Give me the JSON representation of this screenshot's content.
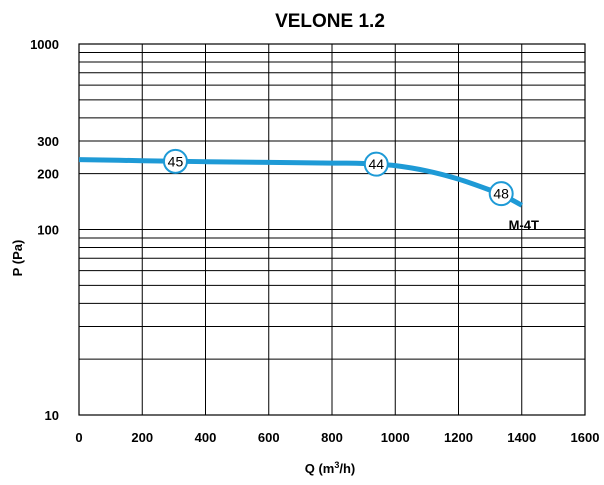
{
  "chart_data": {
    "type": "line",
    "title": "VELONE 1.2",
    "xlabel": {
      "main": "Q (m",
      "sup": "3",
      "tail": "/h)"
    },
    "ylabel": "P  (Pa)",
    "xlim": [
      0,
      1600
    ],
    "ylim": [
      10,
      1000
    ],
    "yscale": "log",
    "grid": true,
    "colors": {
      "series": "#1e9ad6",
      "grid": "#000000",
      "marker_fill": "#ffffff"
    },
    "x_ticks": [
      {
        "value": 0,
        "label": "0"
      },
      {
        "value": 200,
        "label": "200"
      },
      {
        "value": 400,
        "label": "400"
      },
      {
        "value": 600,
        "label": "600"
      },
      {
        "value": 800,
        "label": "800"
      },
      {
        "value": 1000,
        "label": "1000"
      },
      {
        "value": 1200,
        "label": "1200"
      },
      {
        "value": 1400,
        "label": "1400"
      },
      {
        "value": 1600,
        "label": "1600"
      }
    ],
    "y_ticks": [
      {
        "value": 10,
        "label": "10"
      },
      {
        "value": 100,
        "label": "100"
      },
      {
        "value": 200,
        "label": "200"
      },
      {
        "value": 300,
        "label": "300"
      },
      {
        "value": 1000,
        "label": "1000"
      }
    ],
    "y_gridlines": [
      10,
      20,
      30,
      40,
      50,
      60,
      70,
      80,
      90,
      100,
      200,
      300,
      400,
      500,
      600,
      700,
      800,
      900,
      1000
    ],
    "series": [
      {
        "name": "M-4T",
        "x": [
          0,
          200,
          400,
          600,
          800,
          900,
          1000,
          1100,
          1200,
          1300,
          1350,
          1400
        ],
        "y": [
          238,
          235,
          232,
          230,
          228,
          227,
          221,
          207,
          187,
          163,
          150,
          135
        ],
        "markers": [
          {
            "x": 305,
            "y": 233,
            "label": "45"
          },
          {
            "x": 940,
            "y": 225,
            "label": "44"
          },
          {
            "x": 1335,
            "y": 156,
            "label": "48"
          }
        ]
      }
    ]
  }
}
